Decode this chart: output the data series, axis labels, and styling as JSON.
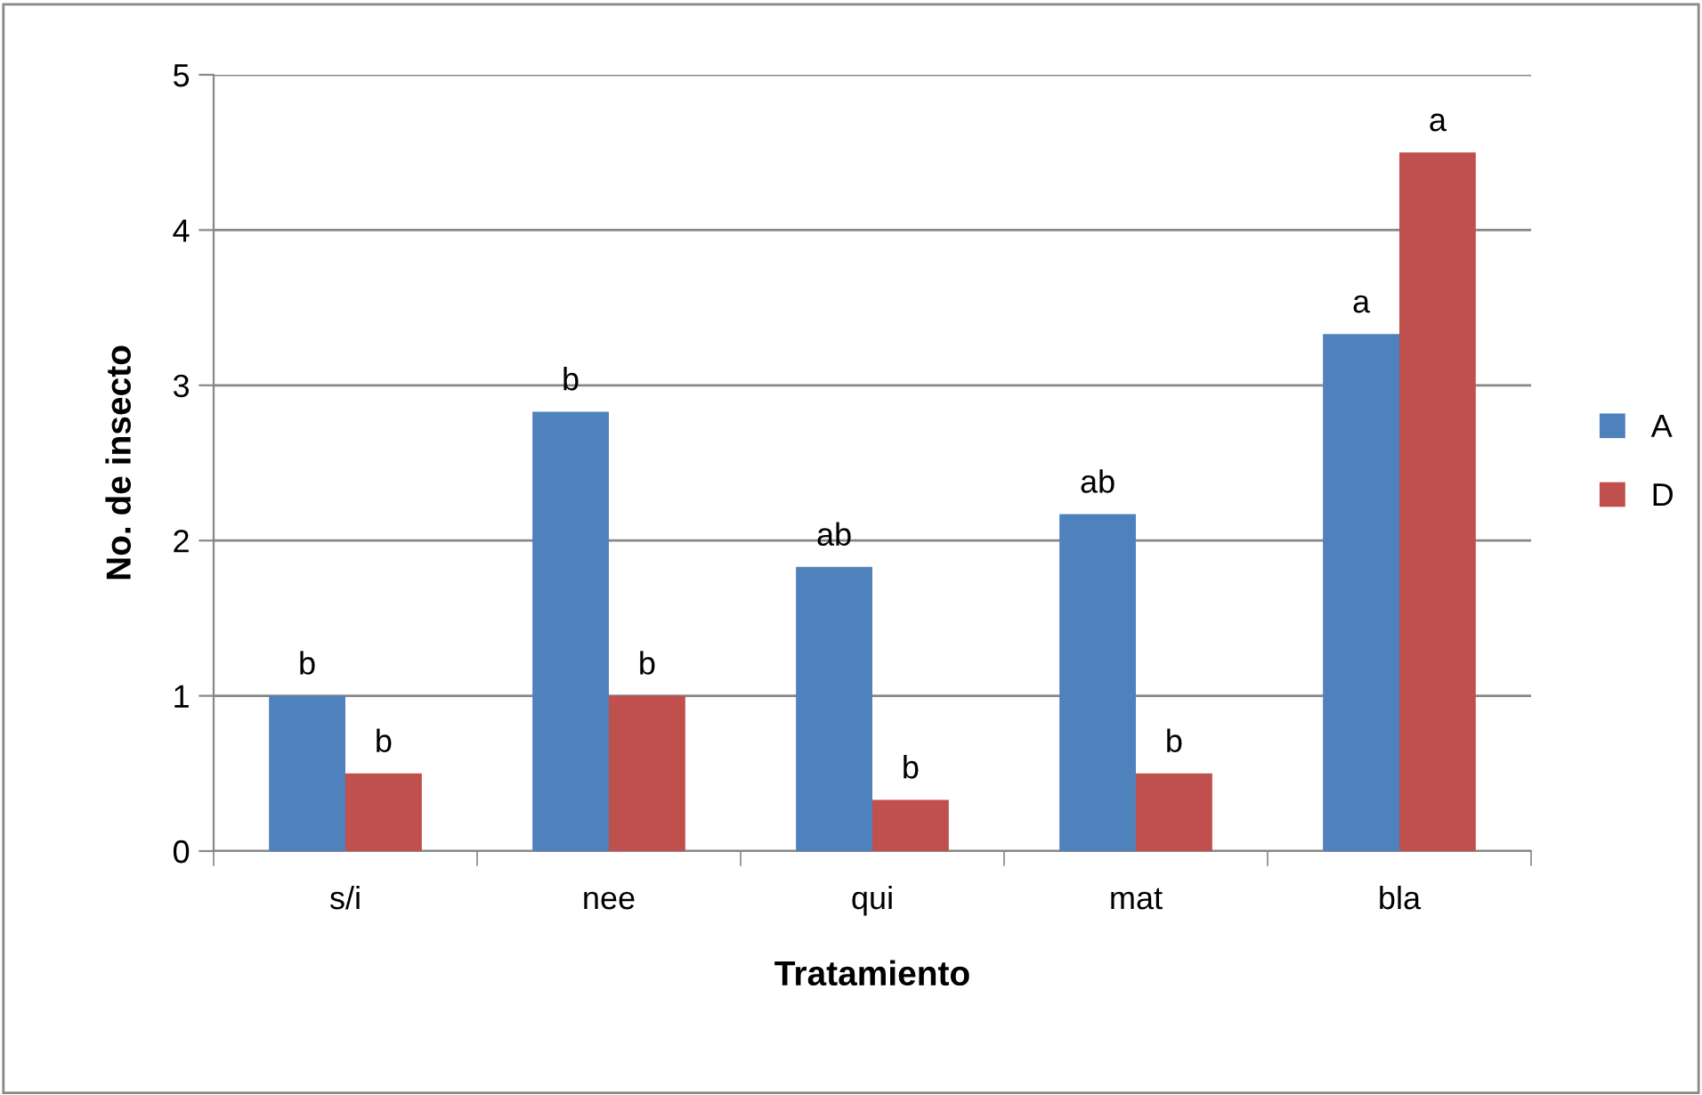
{
  "chart_data": {
    "type": "bar",
    "xlabel": "Tratamiento",
    "ylabel": "No. de insecto",
    "categories": [
      "s/i",
      "nee",
      "qui",
      "mat",
      "bla"
    ],
    "series": [
      {
        "name": "A",
        "color": "#4f81bd",
        "values": [
          1,
          2.83,
          1.83,
          2.17,
          3.33
        ],
        "value_labels": [
          "b",
          "b",
          "ab",
          "ab",
          "a"
        ]
      },
      {
        "name": "D",
        "color": "#c0504d",
        "values": [
          0.5,
          1,
          0.33,
          0.5,
          4.5
        ],
        "value_labels": [
          "b",
          "b",
          "b",
          "b",
          "a"
        ]
      }
    ],
    "ylim": [
      0,
      5
    ],
    "yticks": [
      0,
      1,
      2,
      3,
      4,
      5
    ],
    "grid": "y",
    "legend": "right"
  }
}
